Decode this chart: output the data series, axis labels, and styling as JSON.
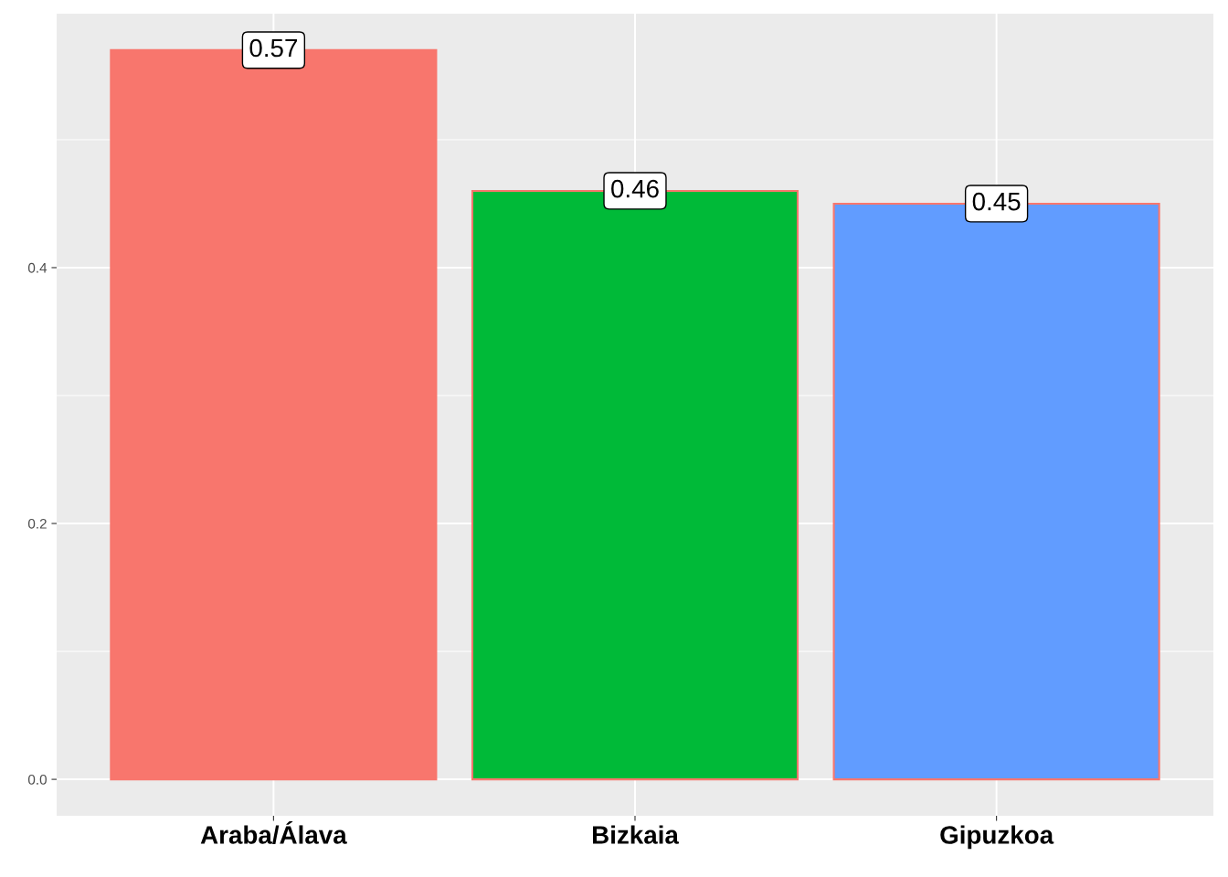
{
  "chart_data": {
    "type": "bar",
    "categories": [
      "Araba/Álava",
      "Bizkaia",
      "Gipuzkoa"
    ],
    "values": [
      0.57,
      0.46,
      0.45
    ],
    "colors": [
      "#f8766d",
      "#00ba38",
      "#619cff"
    ],
    "ylim": [
      -0.0285,
      0.5985
    ],
    "yticks": [
      {
        "value": 0,
        "label": "0.0"
      },
      0.2,
      0.4
    ],
    "grid": true,
    "data_labels": true
  }
}
